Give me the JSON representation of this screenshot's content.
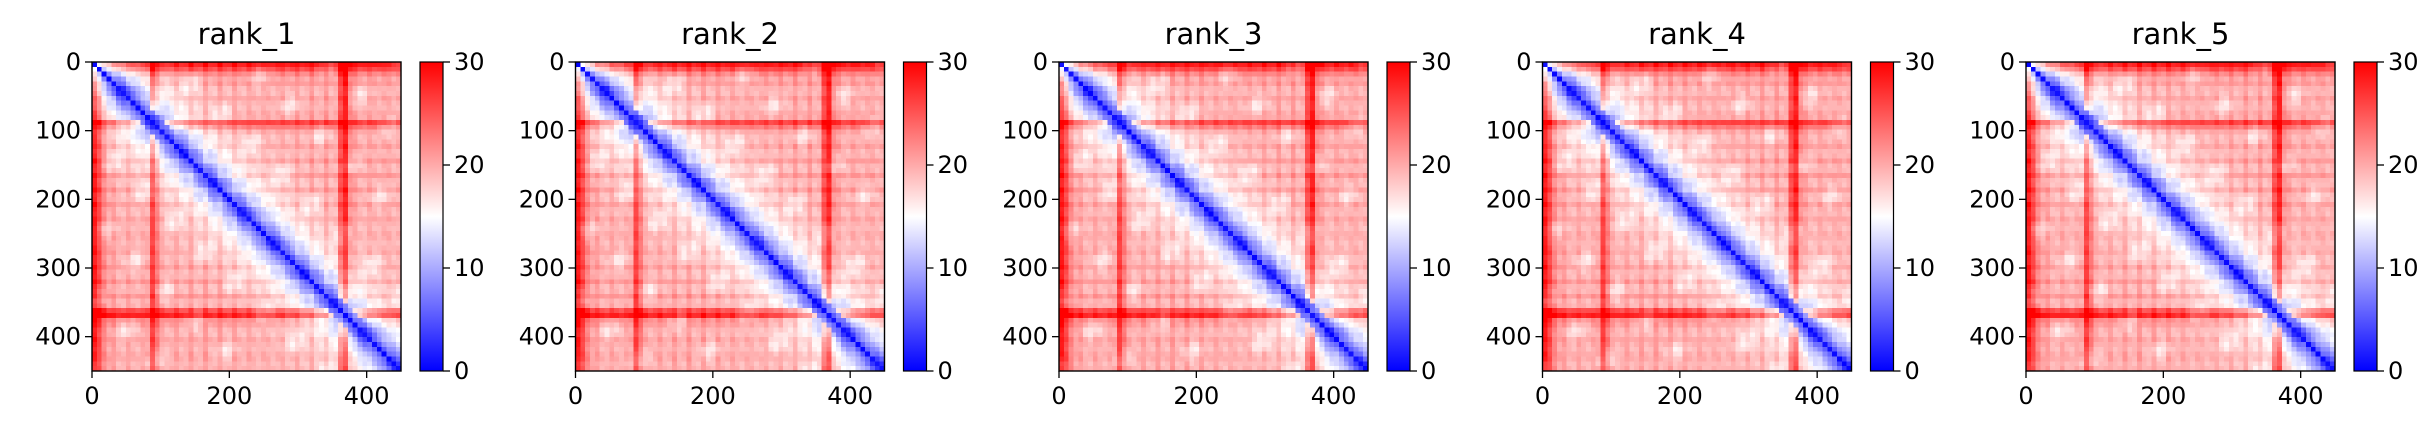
{
  "chart_data": [
    {
      "type": "heatmap",
      "title": "rank_1",
      "xlim": [
        0,
        450
      ],
      "ylim": [
        450,
        0
      ],
      "xticks": [
        "0",
        "200",
        "400"
      ],
      "yticks": [
        "0",
        "100",
        "200",
        "300",
        "400"
      ],
      "colorbar": {
        "ticks": [
          "0",
          "10",
          "20",
          "30"
        ],
        "range": [
          0,
          30
        ],
        "colormap": "bwr"
      }
    },
    {
      "type": "heatmap",
      "title": "rank_2",
      "xlim": [
        0,
        450
      ],
      "ylim": [
        450,
        0
      ],
      "xticks": [
        "0",
        "200",
        "400"
      ],
      "yticks": [
        "0",
        "100",
        "200",
        "300",
        "400"
      ],
      "colorbar": {
        "ticks": [
          "0",
          "10",
          "20",
          "30"
        ],
        "range": [
          0,
          30
        ],
        "colormap": "bwr"
      }
    },
    {
      "type": "heatmap",
      "title": "rank_3",
      "xlim": [
        0,
        450
      ],
      "ylim": [
        450,
        0
      ],
      "xticks": [
        "0",
        "200",
        "400"
      ],
      "yticks": [
        "0",
        "100",
        "200",
        "300",
        "400"
      ],
      "colorbar": {
        "ticks": [
          "0",
          "10",
          "20",
          "30"
        ],
        "range": [
          0,
          30
        ],
        "colormap": "bwr"
      }
    },
    {
      "type": "heatmap",
      "title": "rank_4",
      "xlim": [
        0,
        450
      ],
      "ylim": [
        450,
        0
      ],
      "xticks": [
        "0",
        "200",
        "400"
      ],
      "yticks": [
        "0",
        "100",
        "200",
        "300",
        "400"
      ],
      "colorbar": {
        "ticks": [
          "0",
          "10",
          "20",
          "30"
        ],
        "range": [
          0,
          30
        ],
        "colormap": "bwr"
      }
    },
    {
      "type": "heatmap",
      "title": "rank_5",
      "xlim": [
        0,
        450
      ],
      "ylim": [
        450,
        0
      ],
      "xticks": [
        "0",
        "200",
        "400"
      ],
      "yticks": [
        "0",
        "100",
        "200",
        "300",
        "400"
      ],
      "colorbar": {
        "ticks": [
          "0",
          "10",
          "20",
          "30"
        ],
        "range": [
          0,
          30
        ],
        "colormap": "bwr"
      }
    }
  ],
  "colors": {
    "low": "#0000ff",
    "mid": "#ffffff",
    "high": "#ff0000"
  }
}
